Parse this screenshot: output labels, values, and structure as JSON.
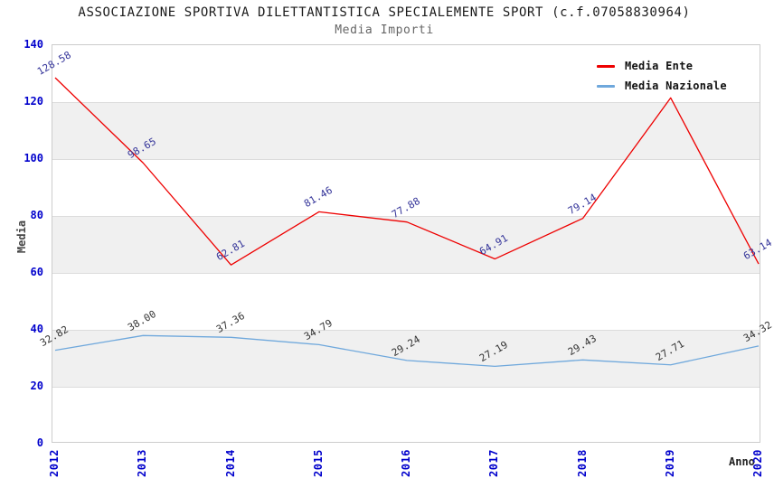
{
  "chart_data": {
    "type": "line",
    "title": "ASSOCIAZIONE SPORTIVA DILETTANTISTICA SPECIALEMENTE SPORT (c.f.07058830964)",
    "subtitle": "Media Importi",
    "xlabel": "Anno",
    "ylabel": "Media",
    "x_categories": [
      "2012",
      "2013",
      "2014",
      "2015",
      "2016",
      "2017",
      "2018",
      "2019",
      "2020"
    ],
    "ylim": [
      0,
      140
    ],
    "yticks": [
      0,
      20,
      40,
      60,
      80,
      100,
      120,
      140
    ],
    "shaded_bands": [
      [
        20,
        40
      ],
      [
        60,
        80
      ],
      [
        100,
        120
      ]
    ],
    "grid": "horizontal-every-20",
    "legend_position": "top-right-inside",
    "series": [
      {
        "name": "Media Nazionale",
        "color": "#6FA8DC",
        "label_color": "#333333",
        "values": [
          32.82,
          38.0,
          37.36,
          34.79,
          29.24,
          27.19,
          29.43,
          27.71,
          34.32
        ],
        "point_labels": [
          "32.82",
          "38.00",
          "37.36",
          "34.79",
          "29.24",
          "27.19",
          "29.43",
          "27.71",
          "34.32"
        ]
      },
      {
        "name": "Media Ente",
        "color": "#EE0000",
        "label_color": "#333399",
        "values": [
          128.58,
          98.65,
          62.81,
          81.46,
          77.88,
          64.91,
          79.14,
          121.5,
          63.14
        ],
        "point_labels": [
          "128.58",
          "98.65",
          "62.81",
          "81.46",
          "77.88",
          "64.91",
          "79.14",
          null,
          "63.14"
        ]
      }
    ],
    "colors": {
      "tick_label": "#0000CC",
      "band": "#F0F0F0",
      "gridline": "#DCDCDC",
      "plot_border": "#CCCCCC",
      "title": "#1A1A1A",
      "subtitle": "#666666",
      "axis_label": "#444444",
      "legend_text": "#111111",
      "background": "#FFFFFF"
    }
  }
}
